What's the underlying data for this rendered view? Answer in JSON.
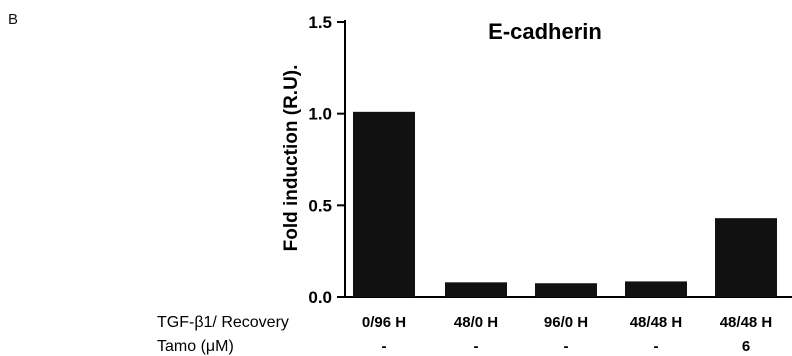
{
  "panel_letter": "B",
  "chart_data": {
    "type": "bar",
    "title": "E-cadherin",
    "ylabel": "Fold induction (R.U).",
    "xlabel": "",
    "ylim": [
      0,
      1.5
    ],
    "yticks": [
      "0.0",
      "0.5",
      "1.0",
      "1.5"
    ],
    "ytick_values": [
      0,
      0.5,
      1.0,
      1.5
    ],
    "categories": [
      "0/96 H",
      "48/0 H",
      "96/0 H",
      "48/48 H",
      "48/48 H"
    ],
    "values": [
      1.01,
      0.08,
      0.075,
      0.085,
      0.43
    ],
    "bar_color": "#111111",
    "rows": [
      {
        "label": "TGF-β1/ Recovery",
        "values": [
          "0/96 H",
          "48/0 H",
          "96/0 H",
          "48/48 H",
          "48/48 H"
        ]
      },
      {
        "label": "Tamo (μM)",
        "values": [
          "-",
          "-",
          "-",
          "-",
          "6"
        ]
      }
    ]
  }
}
